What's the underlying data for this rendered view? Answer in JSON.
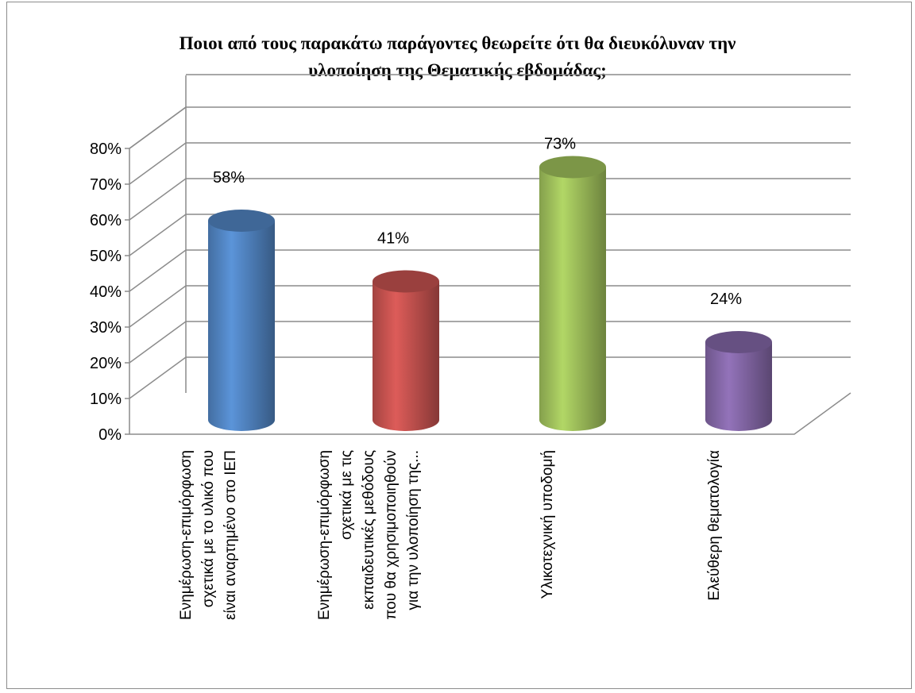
{
  "chart_data": {
    "type": "bar",
    "style": "3d-cylinder",
    "title": [
      "Ποιοι από τους παρακάτω παράγοντες θεωρείτε ότι θα διευκόλυναν την",
      "υλοποίηση της Θεματικής  εβδομάδας;"
    ],
    "categories": [
      [
        "Ενημέρωση-επιμόρφωση",
        "σχετικά με το υλικό που",
        "είναι αναρτημένο στο ΙΕΠ"
      ],
      [
        "Ενημέρωση-επιμόρφωση",
        "σχετικά με τις",
        "εκπαιδευτικές μεθόδους",
        "που θα χρησιμοποιηθούν",
        "για την υλοποίηση της..."
      ],
      [
        "Υλικοτεχνική υποδομή"
      ],
      [
        "Ελεύθερη θεματολογία"
      ]
    ],
    "values": [
      58,
      41,
      73,
      24
    ],
    "data_labels": [
      "58%",
      "41%",
      "73%",
      "24%"
    ],
    "colors": [
      "#4f81bd",
      "#c0504d",
      "#9bbb59",
      "#8064a2"
    ],
    "y_ticks": [
      "0%",
      "10%",
      "20%",
      "30%",
      "40%",
      "50%",
      "60%",
      "70%",
      "80%"
    ],
    "ylim": [
      0,
      80
    ],
    "grid": true,
    "legend": false
  }
}
